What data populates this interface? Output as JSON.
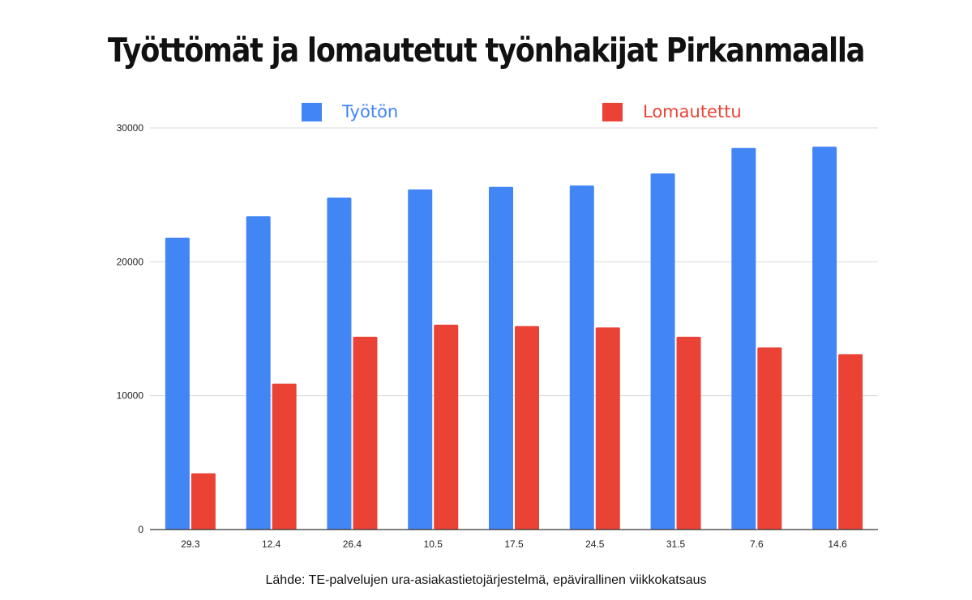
{
  "chart_data": {
    "type": "bar",
    "title": "Työttömät ja lomautetut työnhakijat Pirkanmaalla",
    "xlabel": "",
    "ylabel": "",
    "categories": [
      "29.3",
      "12.4",
      "26.4",
      "10.5",
      "17.5",
      "24.5",
      "31.5",
      "7.6",
      "14.6"
    ],
    "series": [
      {
        "name": "Työtön",
        "color": "#4285f4",
        "values": [
          21800,
          23400,
          24800,
          25400,
          25600,
          25700,
          26600,
          28500,
          28600
        ]
      },
      {
        "name": "Lomautettu",
        "color": "#ea4335",
        "values": [
          4200,
          10900,
          14400,
          15300,
          15200,
          15100,
          14400,
          13600,
          13100
        ]
      }
    ],
    "ylim": [
      0,
      30000
    ],
    "yticks": [
      "0",
      "10000",
      "20000",
      "30000"
    ],
    "grid": true,
    "legend_position": "top"
  },
  "source_note": "Lähde: TE-palvelujen ura-asiakastietojärjestelmä, epävirallinen viikkokatsaus"
}
